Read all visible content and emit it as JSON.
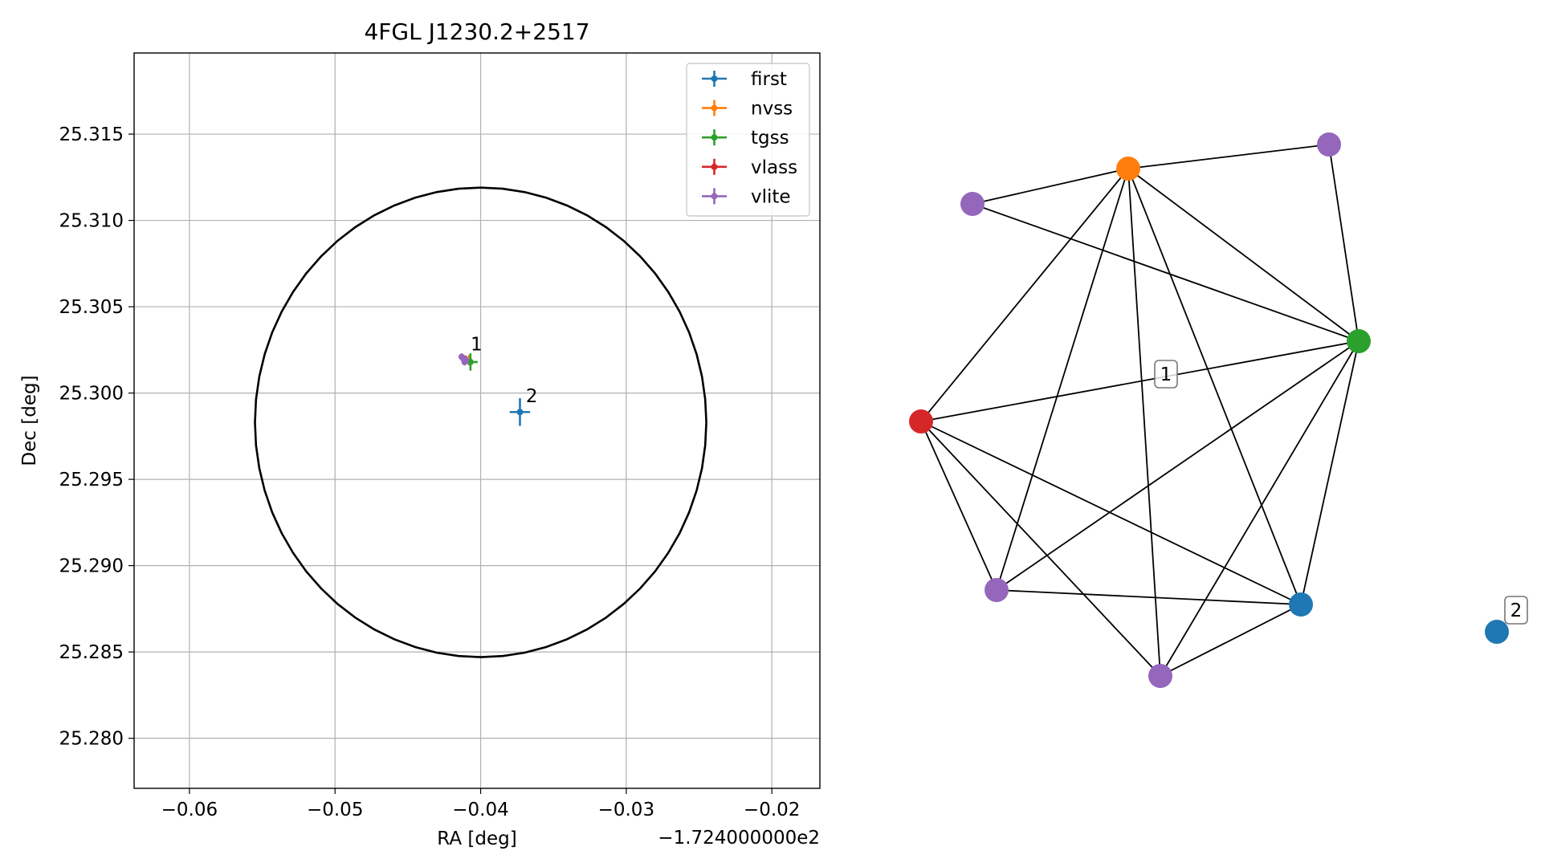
{
  "chart_data": [
    {
      "type": "scatter",
      "title": "4FGL J1230.2+2517",
      "xlabel": "RA [deg]",
      "ylabel": "Dec [deg]",
      "x_offset_text": "−1.724000000e2",
      "xlim": [
        -0.0638,
        -0.0167
      ],
      "ylim": [
        25.2771,
        25.3197
      ],
      "x_ticks": [
        -0.06,
        -0.05,
        -0.04,
        -0.03,
        -0.02
      ],
      "x_tick_labels": [
        "−0.06",
        "−0.05",
        "−0.04",
        "−0.03",
        "−0.02"
      ],
      "y_ticks": [
        25.28,
        25.285,
        25.29,
        25.295,
        25.3,
        25.305,
        25.31,
        25.315
      ],
      "y_tick_labels": [
        "25.280",
        "25.285",
        "25.290",
        "25.295",
        "25.300",
        "25.305",
        "25.310",
        "25.315"
      ],
      "grid": true,
      "legend_position": "top-right",
      "circle": {
        "center": [
          -0.04,
          25.2983
        ],
        "radius_x": 0.0155,
        "radius_y": 0.0136
      },
      "series": [
        {
          "name": "first",
          "color": "#1f77b4",
          "points": [
            {
              "x": -0.0373,
              "y": 25.2989,
              "xerr": 0.0007,
              "yerr": 0.0008
            }
          ]
        },
        {
          "name": "nvss",
          "color": "#ff7f0e",
          "points": [
            {
              "x": -0.0408,
              "y": 25.3019,
              "xerr": 0.0002,
              "yerr": 0.0003
            }
          ]
        },
        {
          "name": "tgss",
          "color": "#2ca02c",
          "points": [
            {
              "x": -0.0407,
              "y": 25.3018,
              "xerr": 0.0005,
              "yerr": 0.0005
            }
          ]
        },
        {
          "name": "vlass",
          "color": "#d62728",
          "points": [
            {
              "x": -0.0411,
              "y": 25.302,
              "xerr": 0.0001,
              "yerr": 0.0001
            }
          ]
        },
        {
          "name": "vlite",
          "color": "#9467bd",
          "points": [
            {
              "x": -0.0413,
              "y": 25.3021,
              "xerr": 0.0002,
              "yerr": 0.0002
            },
            {
              "x": -0.0411,
              "y": 25.3018,
              "xerr": 0.0002,
              "yerr": 0.0002
            },
            {
              "x": -0.0412,
              "y": 25.302,
              "xerr": 0.0002,
              "yerr": 0.0002
            },
            {
              "x": -0.041,
              "y": 25.3019,
              "xerr": 0.0002,
              "yerr": 0.0002
            }
          ]
        }
      ],
      "annotations": [
        {
          "text": "1",
          "x": -0.0408,
          "y": 25.3022
        },
        {
          "text": "2",
          "x": -0.037,
          "y": 25.2992
        }
      ]
    },
    {
      "type": "network",
      "title": "",
      "nodes": [
        {
          "id": "vlite_a",
          "color": "#9467bd"
        },
        {
          "id": "nvss",
          "color": "#ff7f0e"
        },
        {
          "id": "vlite_b",
          "color": "#9467bd"
        },
        {
          "id": "tgss",
          "color": "#2ca02c"
        },
        {
          "id": "vlass",
          "color": "#d62728"
        },
        {
          "id": "vlite_c",
          "color": "#9467bd"
        },
        {
          "id": "first_a",
          "color": "#1f77b4"
        },
        {
          "id": "vlite_d",
          "color": "#9467bd"
        },
        {
          "id": "first_b",
          "color": "#1f77b4"
        }
      ],
      "edges": [
        [
          "nvss",
          "vlite_a"
        ],
        [
          "nvss",
          "vlite_b"
        ],
        [
          "nvss",
          "tgss"
        ],
        [
          "nvss",
          "vlass"
        ],
        [
          "nvss",
          "vlite_c"
        ],
        [
          "nvss",
          "vlite_d"
        ],
        [
          "nvss",
          "first_a"
        ],
        [
          "vlite_a",
          "tgss"
        ],
        [
          "vlite_b",
          "tgss"
        ],
        [
          "tgss",
          "vlass"
        ],
        [
          "tgss",
          "vlite_c"
        ],
        [
          "tgss",
          "first_a"
        ],
        [
          "tgss",
          "vlite_d"
        ],
        [
          "vlass",
          "vlite_c"
        ],
        [
          "vlass",
          "vlite_d"
        ],
        [
          "vlass",
          "first_a"
        ],
        [
          "vlite_c",
          "first_a"
        ],
        [
          "vlite_d",
          "first_a"
        ]
      ],
      "cluster_labels": [
        {
          "text": "1",
          "members": [
            "vlite_a",
            "nvss",
            "vlite_b",
            "tgss",
            "vlass",
            "vlite_c",
            "first_a",
            "vlite_d"
          ]
        },
        {
          "text": "2",
          "members": [
            "first_b"
          ]
        }
      ]
    }
  ]
}
